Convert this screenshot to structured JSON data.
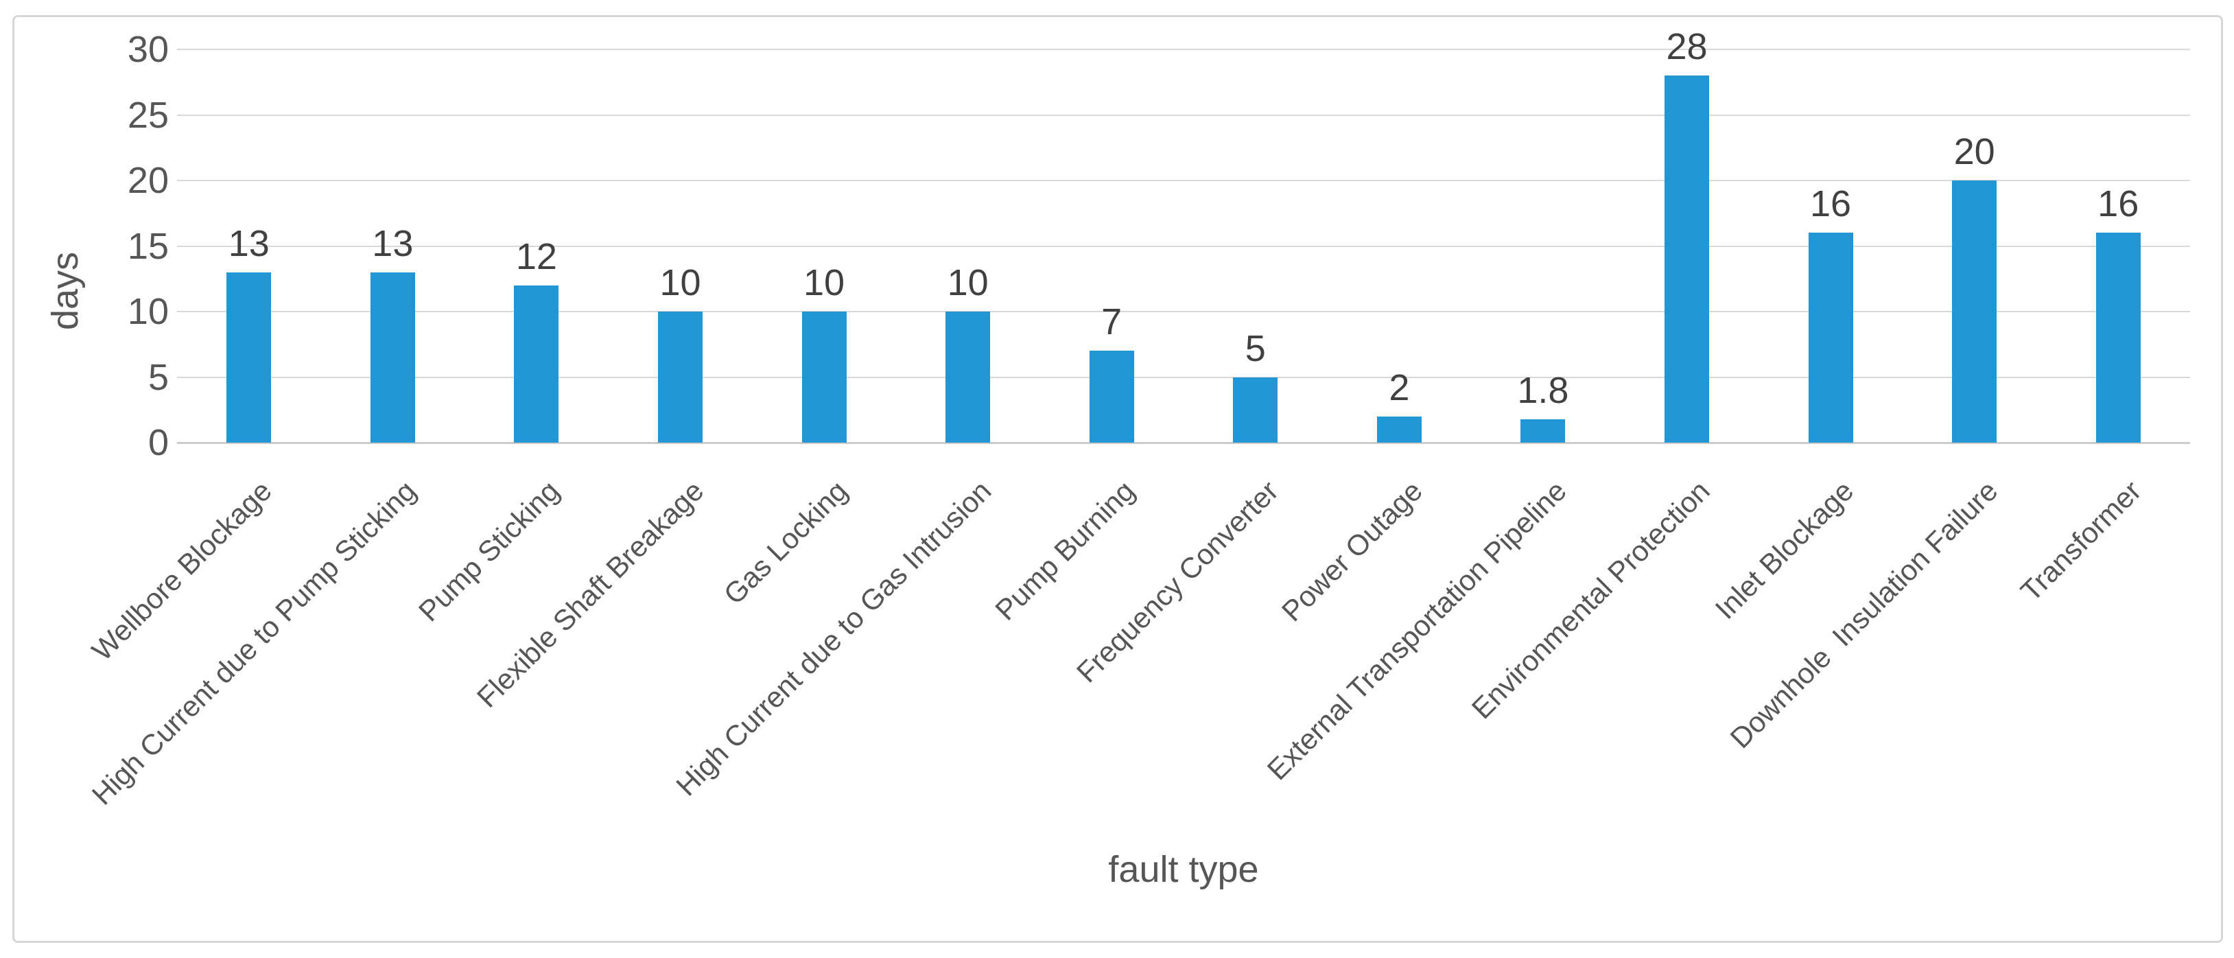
{
  "page": {
    "background": "#ffffff"
  },
  "chart_data": {
    "type": "bar",
    "title": "",
    "xlabel": "fault type",
    "ylabel": "days",
    "categories": [
      "Wellbore Blockage",
      "High Current due to Pump Sticking",
      "Pump Sticking",
      "Flexible Shaft Breakage",
      "Gas Locking",
      "High Current due to Gas Intrusion",
      "Pump Burning",
      "Frequency Converter",
      "Power Outage",
      "External Transportation Pipeline",
      "Environmental Protection",
      "Inlet Blockage",
      "Downhole  Insulation Failure",
      "Transformer"
    ],
    "values": [
      13,
      13,
      12,
      10,
      10,
      10,
      7,
      5,
      2,
      1.8,
      28,
      16,
      20,
      16
    ],
    "data_labels": [
      "13",
      "13",
      "12",
      "10",
      "10",
      "10",
      "7",
      "5",
      "2",
      "1.8",
      "28",
      "16",
      "20",
      "16"
    ],
    "yticks": [
      0,
      5,
      10,
      15,
      20,
      25,
      30
    ],
    "ylim": [
      0,
      30
    ],
    "grid": "horizontal",
    "legend": "none",
    "bar_color": "#2296d4",
    "gridline_color": "#d9d9d9",
    "axis_line_color": "#cccccc",
    "tick_label_color": "#565656",
    "data_label_color": "#404040",
    "frame_border_color": "#d6d6d6"
  }
}
